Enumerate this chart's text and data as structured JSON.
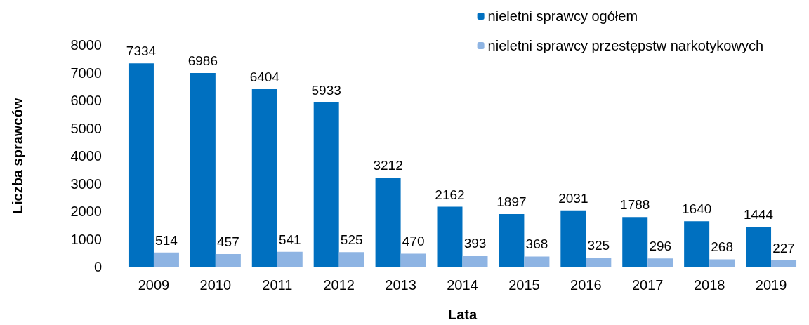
{
  "chart_data": {
    "type": "bar",
    "xlabel": "Lata",
    "ylabel": "Liczba sprawców",
    "categories": [
      "2009",
      "2010",
      "2011",
      "2012",
      "2013",
      "2014",
      "2015",
      "2016",
      "2017",
      "2018",
      "2019"
    ],
    "series": [
      {
        "name": "nieletni sprawcy ogółem",
        "color": "#0070c0",
        "values": [
          7334,
          6986,
          6404,
          5933,
          3212,
          2162,
          1897,
          2031,
          1788,
          1640,
          1444
        ]
      },
      {
        "name": "nieletni sprawcy przestępstw narkotykowych",
        "color": "#8eb4e3",
        "values": [
          514,
          457,
          541,
          525,
          470,
          393,
          368,
          325,
          296,
          268,
          227
        ]
      }
    ],
    "ylim": [
      0,
      8000
    ],
    "yticks": [
      0,
      1000,
      2000,
      3000,
      4000,
      5000,
      6000,
      7000,
      8000
    ],
    "grid": false,
    "legend": "top right",
    "data_labels": true
  }
}
